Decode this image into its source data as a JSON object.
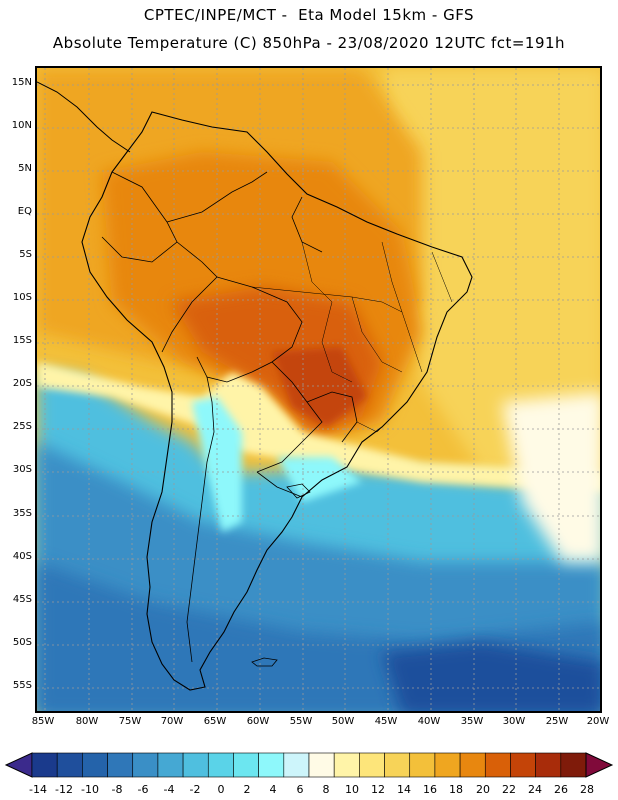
{
  "header": {
    "title_line1": "CPTEC/INPE/MCT -  Eta Model 15km - GFS",
    "title_line2": "Absolute Temperature (C) 850hPa - 23/08/2020 12UTC fct=191h"
  },
  "map": {
    "type": "filled-contour-map",
    "region": "South America",
    "variable": "Absolute Temperature at 850hPa",
    "units": "C",
    "lat_labels": [
      "15N",
      "10N",
      "5N",
      "EQ",
      "5S",
      "10S",
      "15S",
      "20S",
      "25S",
      "30S",
      "35S",
      "40S",
      "45S",
      "50S",
      "55S"
    ],
    "lon_labels": [
      "85W",
      "80W",
      "75W",
      "70W",
      "65W",
      "60W",
      "55W",
      "50W",
      "45W",
      "40W",
      "35W",
      "30W",
      "25W",
      "20W"
    ]
  },
  "colorbar": {
    "labels": [
      "-14",
      "-12",
      "-10",
      "-8",
      "-6",
      "-4",
      "-2",
      "0",
      "2",
      "4",
      "6",
      "8",
      "10",
      "12",
      "14",
      "16",
      "18",
      "20",
      "22",
      "24",
      "26",
      "28"
    ],
    "colors": [
      "#1a3a8c",
      "#1f4f9c",
      "#2463aa",
      "#2f77b8",
      "#3a8fc6",
      "#45a8d3",
      "#4fbfdf",
      "#5ad3e8",
      "#6ce6f0",
      "#8ef8fb",
      "#cdf5fb",
      "#fffbe6",
      "#fff4a8",
      "#fde57a",
      "#f7d358",
      "#f3c03a",
      "#efa620",
      "#e8870f",
      "#d96008",
      "#c44408",
      "#a82c0a",
      "#7f1b0a"
    ],
    "left_arrow_color": "#3b2a8c",
    "right_arrow_color": "#800a3a"
  }
}
